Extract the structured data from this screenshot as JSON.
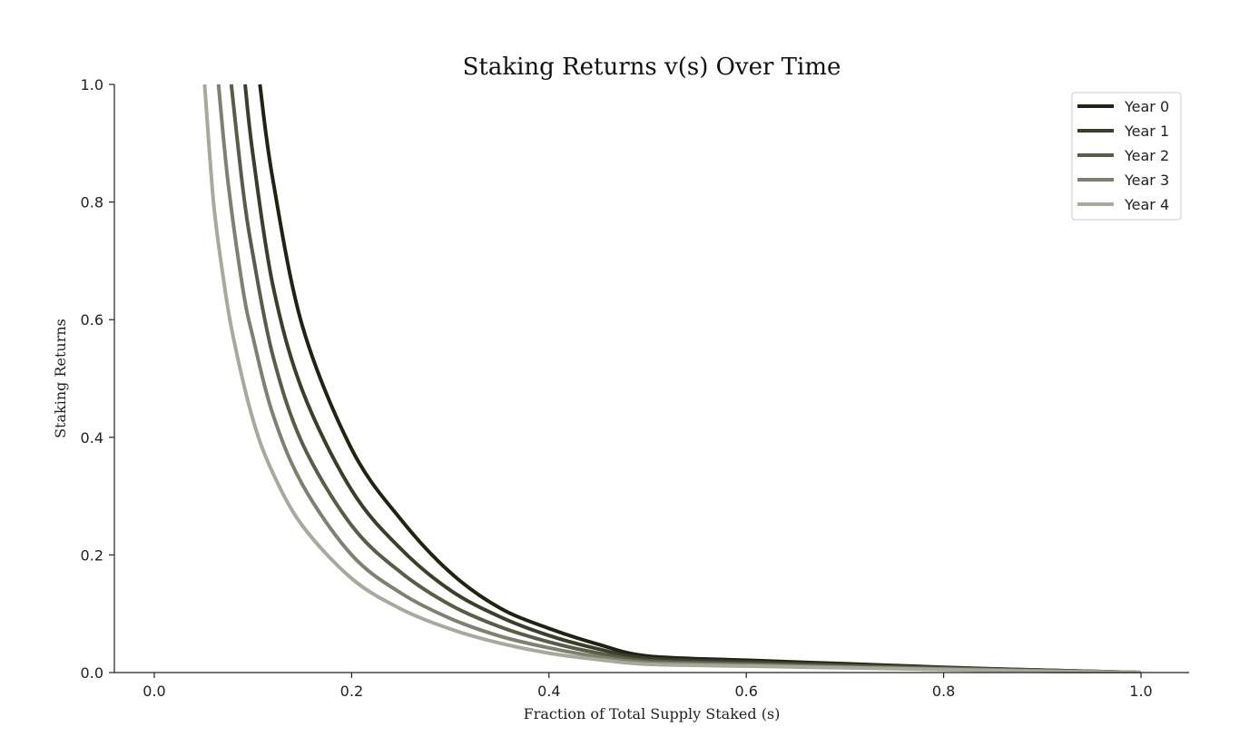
{
  "chart_data": {
    "type": "line",
    "title": "Staking Returns v(s) Over Time",
    "xlabel": "Fraction of Total Supply Staked (s)",
    "ylabel": "Staking Returns",
    "xlim": [
      -0.04,
      1.05
    ],
    "ylim": [
      0.0,
      1.0
    ],
    "xticks": [
      "0.0",
      "0.2",
      "0.4",
      "0.6",
      "0.8",
      "1.0"
    ],
    "yticks": [
      "0.0",
      "0.2",
      "0.4",
      "0.6",
      "0.8",
      "1.0"
    ],
    "grid": false,
    "legend_position": "top-right",
    "series": [
      {
        "name": "Year 0",
        "color": "#1f2410",
        "knee_value": 0.028,
        "points": [
          [
            0.107,
            1.0
          ],
          [
            0.12,
            0.84
          ],
          [
            0.15,
            0.59
          ],
          [
            0.2,
            0.38
          ],
          [
            0.25,
            0.26
          ],
          [
            0.3,
            0.17
          ],
          [
            0.35,
            0.11
          ],
          [
            0.4,
            0.075
          ],
          [
            0.45,
            0.048
          ],
          [
            0.5,
            0.028
          ],
          [
            0.6,
            0.021
          ],
          [
            0.7,
            0.015
          ],
          [
            0.8,
            0.009
          ],
          [
            0.9,
            0.004
          ],
          [
            1.0,
            0.0
          ]
        ]
      },
      {
        "name": "Year 1",
        "color": "#3a3f2a",
        "knee_value": 0.024,
        "points": [
          [
            0.092,
            1.0
          ],
          [
            0.1,
            0.88
          ],
          [
            0.12,
            0.66
          ],
          [
            0.15,
            0.48
          ],
          [
            0.2,
            0.31
          ],
          [
            0.25,
            0.21
          ],
          [
            0.3,
            0.14
          ],
          [
            0.35,
            0.095
          ],
          [
            0.4,
            0.063
          ],
          [
            0.45,
            0.04
          ],
          [
            0.5,
            0.024
          ],
          [
            0.6,
            0.018
          ],
          [
            0.7,
            0.013
          ],
          [
            0.8,
            0.008
          ],
          [
            0.9,
            0.004
          ],
          [
            1.0,
            0.0
          ]
        ]
      },
      {
        "name": "Year 2",
        "color": "#585d47",
        "knee_value": 0.02,
        "points": [
          [
            0.078,
            1.0
          ],
          [
            0.09,
            0.82
          ],
          [
            0.1,
            0.71
          ],
          [
            0.12,
            0.54
          ],
          [
            0.15,
            0.39
          ],
          [
            0.2,
            0.25
          ],
          [
            0.25,
            0.17
          ],
          [
            0.3,
            0.115
          ],
          [
            0.35,
            0.078
          ],
          [
            0.4,
            0.052
          ],
          [
            0.45,
            0.033
          ],
          [
            0.5,
            0.02
          ],
          [
            0.6,
            0.015
          ],
          [
            0.7,
            0.011
          ],
          [
            0.8,
            0.007
          ],
          [
            0.9,
            0.003
          ],
          [
            1.0,
            0.0
          ]
        ]
      },
      {
        "name": "Year 3",
        "color": "#7d8270",
        "knee_value": 0.017,
        "points": [
          [
            0.065,
            1.0
          ],
          [
            0.075,
            0.83
          ],
          [
            0.09,
            0.65
          ],
          [
            0.1,
            0.57
          ],
          [
            0.12,
            0.44
          ],
          [
            0.15,
            0.32
          ],
          [
            0.2,
            0.2
          ],
          [
            0.25,
            0.135
          ],
          [
            0.3,
            0.092
          ],
          [
            0.35,
            0.062
          ],
          [
            0.4,
            0.042
          ],
          [
            0.45,
            0.027
          ],
          [
            0.5,
            0.017
          ],
          [
            0.6,
            0.013
          ],
          [
            0.7,
            0.009
          ],
          [
            0.8,
            0.006
          ],
          [
            0.9,
            0.003
          ],
          [
            1.0,
            0.0
          ]
        ]
      },
      {
        "name": "Year 4",
        "color": "#a6a99b",
        "knee_value": 0.014,
        "points": [
          [
            0.051,
            1.0
          ],
          [
            0.06,
            0.8
          ],
          [
            0.07,
            0.67
          ],
          [
            0.08,
            0.57
          ],
          [
            0.1,
            0.43
          ],
          [
            0.12,
            0.34
          ],
          [
            0.15,
            0.25
          ],
          [
            0.2,
            0.16
          ],
          [
            0.25,
            0.108
          ],
          [
            0.3,
            0.074
          ],
          [
            0.35,
            0.05
          ],
          [
            0.4,
            0.033
          ],
          [
            0.45,
            0.022
          ],
          [
            0.5,
            0.014
          ],
          [
            0.6,
            0.011
          ],
          [
            0.7,
            0.008
          ],
          [
            0.8,
            0.005
          ],
          [
            0.9,
            0.002
          ],
          [
            1.0,
            0.0
          ]
        ]
      }
    ]
  }
}
